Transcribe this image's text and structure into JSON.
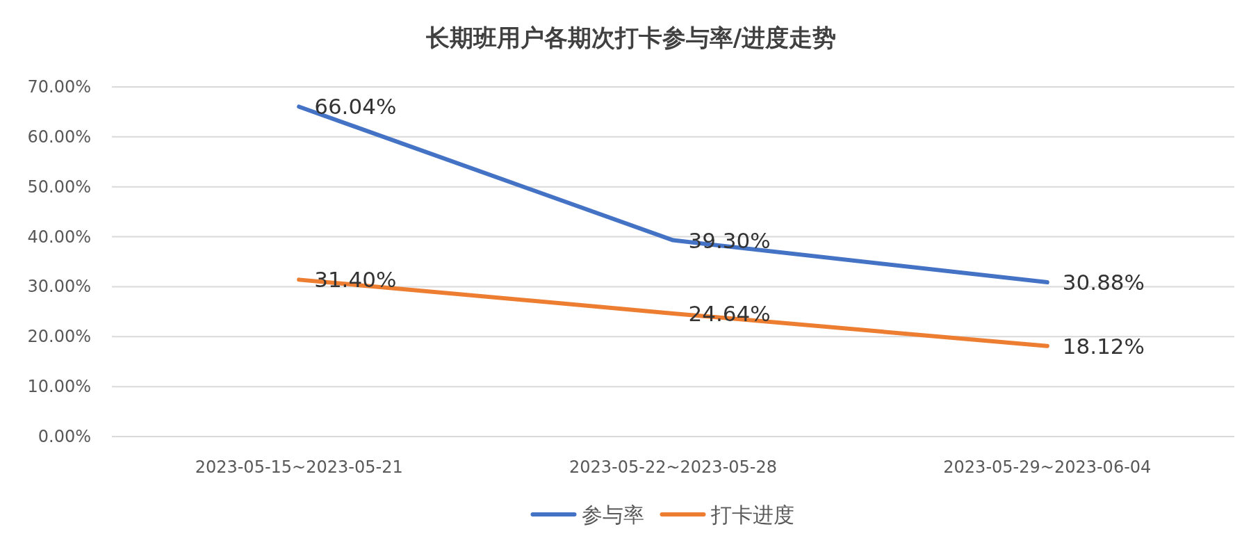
{
  "chart_data": {
    "type": "line",
    "title": "长期班用户各期次打卡参与率/进度走势",
    "categories": [
      "2023-05-15~2023-05-21",
      "2023-05-22~2023-05-28",
      "2023-05-29~2023-06-04"
    ],
    "series": [
      {
        "name": "参与率",
        "color": "#4472c4",
        "values": [
          66.04,
          39.3,
          30.88
        ],
        "value_labels": [
          "66.04%",
          "39.30%",
          "30.88%"
        ]
      },
      {
        "name": "打卡进度",
        "color": "#ed7d31",
        "values": [
          31.4,
          24.64,
          18.12
        ],
        "value_labels": [
          "31.40%",
          "24.64%",
          "18.12%"
        ]
      }
    ],
    "ylim": [
      0,
      70
    ],
    "yticks": [
      {
        "value": 0,
        "label": "0.00%"
      },
      {
        "value": 10,
        "label": "10.00%"
      },
      {
        "value": 20,
        "label": "20.00%"
      },
      {
        "value": 30,
        "label": "30.00%"
      },
      {
        "value": 40,
        "label": "40.00%"
      },
      {
        "value": 50,
        "label": "50.00%"
      },
      {
        "value": 60,
        "label": "60.00%"
      },
      {
        "value": 70,
        "label": "70.00%"
      }
    ],
    "grid": "y",
    "legend": "bottom"
  }
}
